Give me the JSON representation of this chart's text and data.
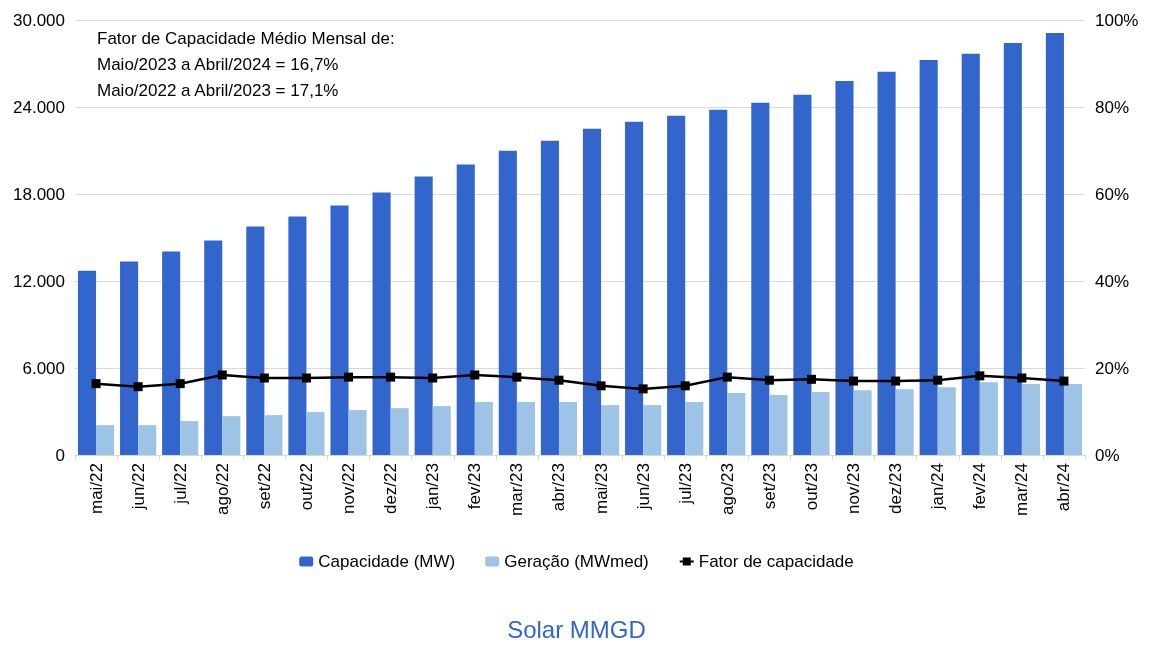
{
  "chart_data": {
    "type": "bar",
    "title": "Solar MMGD",
    "categories": [
      "mai/22",
      "jun/22",
      "jul/22",
      "ago/22",
      "set/22",
      "out/22",
      "nov/22",
      "dez/22",
      "jan/23",
      "fev/23",
      "mar/23",
      "abr/23",
      "mai/23",
      "jun/23",
      "jul/23",
      "ago/23",
      "set/23",
      "out/23",
      "nov/23",
      "dez/23",
      "jan/24",
      "fev/24",
      "mar/24",
      "abr/24"
    ],
    "series": [
      {
        "name": "Capacidade (MW)",
        "color": "#3366cc",
        "values": [
          12700,
          13350,
          14040,
          14800,
          15760,
          16450,
          17200,
          18100,
          19200,
          20030,
          20990,
          21680,
          22500,
          22990,
          23400,
          23810,
          24300,
          24850,
          25800,
          26430,
          27250,
          27670,
          28420,
          29110
        ]
      },
      {
        "name": "Geração (MWmed)",
        "color": "#9dc3e6",
        "values": [
          2060,
          2060,
          2340,
          2680,
          2750,
          2960,
          3100,
          3230,
          3370,
          3650,
          3650,
          3650,
          3440,
          3440,
          3650,
          4270,
          4130,
          4340,
          4470,
          4540,
          4680,
          5020,
          4890,
          4890
        ]
      },
      {
        "name": "Fator de capacidade",
        "type": "line",
        "axis": "y2",
        "color": "#000000",
        "marker": "square",
        "values": [
          16.4,
          15.7,
          16.4,
          18.4,
          17.7,
          17.7,
          17.9,
          17.9,
          17.7,
          18.4,
          17.9,
          17.2,
          15.9,
          15.2,
          15.9,
          17.9,
          17.2,
          17.4,
          17.0,
          17.0,
          17.2,
          18.2,
          17.7,
          17.0
        ]
      }
    ],
    "ylim": [
      0,
      30000
    ],
    "yticks": [
      0,
      {
        "value": 6000,
        "label": "6.000"
      },
      {
        "value": 12000,
        "label": "12.000"
      },
      {
        "value": 18000,
        "label": "18.000"
      },
      {
        "value": 24000,
        "label": "24.000"
      },
      {
        "value": 30000,
        "label": "30.000"
      }
    ],
    "y2lim": [
      0,
      100
    ],
    "y2ticks": [
      {
        "value": 0,
        "label": "0%"
      },
      {
        "value": 20,
        "label": "20%"
      },
      {
        "value": 40,
        "label": "40%"
      },
      {
        "value": 60,
        "label": "60%"
      },
      {
        "value": 80,
        "label": "80%"
      },
      {
        "value": 100,
        "label": "100%"
      }
    ],
    "annotations": [
      "Fator de Capacidade Médio Mensal de:",
      "Maio/2023 a Abril/2024 = 16,7%",
      "Maio/2022 a Abril/2023 = 17,1%"
    ],
    "grid": "y",
    "legend": "bottom"
  }
}
